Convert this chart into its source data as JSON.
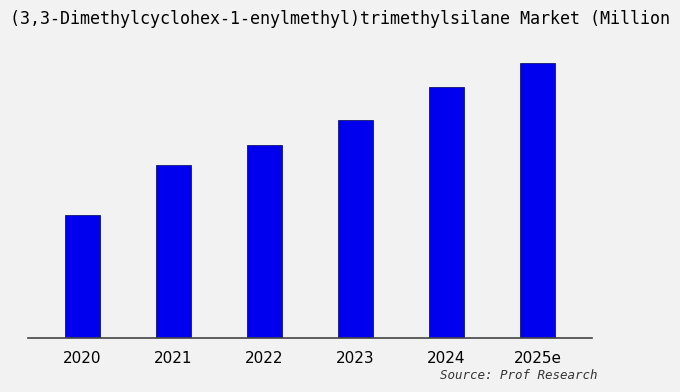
{
  "title": "(3,3-Dimethylcyclohex-1-enylmethyl)trimethylsilane Market (Million",
  "categories": [
    "2020",
    "2021",
    "2022",
    "2023",
    "2024",
    "2025e"
  ],
  "values": [
    3.0,
    4.2,
    4.7,
    5.3,
    6.1,
    6.7
  ],
  "bar_color": "#0000ee",
  "background_color": "#f2f2f2",
  "plot_background": "#f2f2f2",
  "source_text": "Source: Prof Research",
  "title_fontsize": 12,
  "tick_fontsize": 11,
  "source_fontsize": 9,
  "ylim": [
    0,
    7.2
  ],
  "bar_width": 0.38
}
